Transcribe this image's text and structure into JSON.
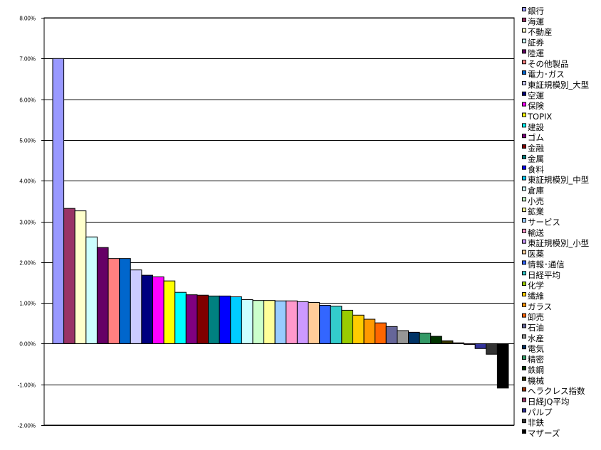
{
  "chart_data": {
    "type": "bar",
    "ylim": [
      -2.0,
      8.0
    ],
    "yticks": [
      "8.00%",
      "7.00%",
      "6.00%",
      "5.00%",
      "4.00%",
      "3.00%",
      "2.00%",
      "1.00%",
      "0.00%",
      "-1.00%",
      "-2.00%"
    ],
    "ytick_values": [
      8,
      7,
      6,
      5,
      4,
      3,
      2,
      1,
      0,
      -1,
      -2
    ],
    "grid": true,
    "legend": "right",
    "unit": "%",
    "series": [
      {
        "name": "銀行",
        "value": 7.0,
        "color": "#9999FF"
      },
      {
        "name": "海運",
        "value": 3.32,
        "color": "#993366"
      },
      {
        "name": "不動産",
        "value": 3.26,
        "color": "#FFFFCC"
      },
      {
        "name": "証券",
        "value": 2.62,
        "color": "#CCFFFF"
      },
      {
        "name": "陸運",
        "value": 2.36,
        "color": "#660066"
      },
      {
        "name": "その他製品",
        "value": 2.09,
        "color": "#FF8080"
      },
      {
        "name": "電力･ガス",
        "value": 2.09,
        "color": "#0066CC"
      },
      {
        "name": "東証規模別_大型",
        "value": 1.81,
        "color": "#CCCCFF"
      },
      {
        "name": "空運",
        "value": 1.68,
        "color": "#000080"
      },
      {
        "name": "保険",
        "value": 1.64,
        "color": "#FF00FF"
      },
      {
        "name": "TOPIX",
        "value": 1.54,
        "color": "#FFFF00"
      },
      {
        "name": "建設",
        "value": 1.26,
        "color": "#00FFFF"
      },
      {
        "name": "ゴム",
        "value": 1.2,
        "color": "#800080"
      },
      {
        "name": "金融",
        "value": 1.19,
        "color": "#800000"
      },
      {
        "name": "金属",
        "value": 1.17,
        "color": "#008080"
      },
      {
        "name": "食料",
        "value": 1.17,
        "color": "#0000FF"
      },
      {
        "name": "東証規模別_中型",
        "value": 1.15,
        "color": "#00CCFF"
      },
      {
        "name": "倉庫",
        "value": 1.08,
        "color": "#CCFFFF"
      },
      {
        "name": "小売",
        "value": 1.06,
        "color": "#CCFFCC"
      },
      {
        "name": "鉱業",
        "value": 1.06,
        "color": "#FFFF99"
      },
      {
        "name": "サービス",
        "value": 1.05,
        "color": "#99CCFF"
      },
      {
        "name": "輸送",
        "value": 1.05,
        "color": "#FF99CC"
      },
      {
        "name": "東証規模別_小型",
        "value": 1.03,
        "color": "#CC99FF"
      },
      {
        "name": "医薬",
        "value": 1.01,
        "color": "#FFCC99"
      },
      {
        "name": "情報･通信",
        "value": 0.94,
        "color": "#3366FF"
      },
      {
        "name": "日経平均",
        "value": 0.92,
        "color": "#33CCCC"
      },
      {
        "name": "化学",
        "value": 0.82,
        "color": "#99CC00"
      },
      {
        "name": "繊維",
        "value": 0.7,
        "color": "#FFCC00"
      },
      {
        "name": "ガラス",
        "value": 0.6,
        "color": "#FF9900"
      },
      {
        "name": "卸売",
        "value": 0.51,
        "color": "#FF6600"
      },
      {
        "name": "石油",
        "value": 0.42,
        "color": "#666699"
      },
      {
        "name": "水産",
        "value": 0.32,
        "color": "#969696"
      },
      {
        "name": "電気",
        "value": 0.28,
        "color": "#003366"
      },
      {
        "name": "精密",
        "value": 0.26,
        "color": "#339966"
      },
      {
        "name": "鉄鋼",
        "value": 0.18,
        "color": "#003300"
      },
      {
        "name": "機械",
        "value": 0.07,
        "color": "#333300"
      },
      {
        "name": "ヘラクレス指数",
        "value": 0.02,
        "color": "#993300"
      },
      {
        "name": "日経JQ平均",
        "value": -0.02,
        "color": "#993366"
      },
      {
        "name": "パルプ",
        "value": -0.12,
        "color": "#333399"
      },
      {
        "name": "非鉄",
        "value": -0.26,
        "color": "#333333"
      },
      {
        "name": "マザーズ",
        "value": -1.09,
        "color": "#000000"
      }
    ]
  }
}
